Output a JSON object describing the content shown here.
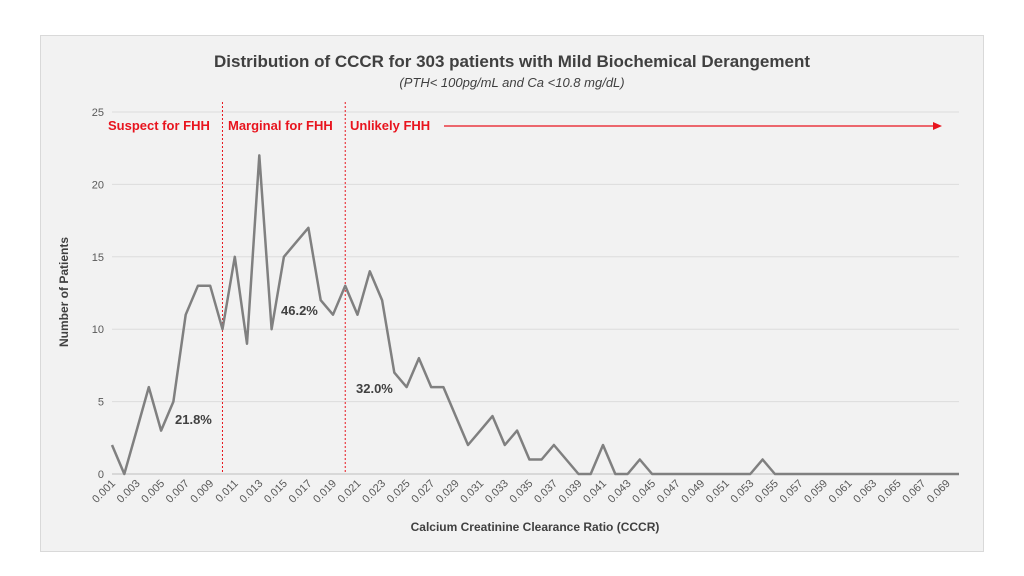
{
  "chart_data": {
    "type": "line",
    "title": "Distribution of CCCR for 303 patients with Mild Biochemical Derangement",
    "subtitle": "(PTH< 100pg/mL and Ca <10.8 mg/dL)",
    "xlabel": "Calcium Creatinine Clearance Ratio (CCCR)",
    "ylabel": "Number of Patients",
    "ylim": [
      0,
      25
    ],
    "yticks": [
      0,
      5,
      10,
      15,
      20,
      25
    ],
    "x": [
      0.001,
      0.002,
      0.003,
      0.004,
      0.005,
      0.006,
      0.007,
      0.008,
      0.009,
      0.01,
      0.011,
      0.012,
      0.013,
      0.014,
      0.015,
      0.016,
      0.017,
      0.018,
      0.019,
      0.02,
      0.021,
      0.022,
      0.023,
      0.024,
      0.025,
      0.026,
      0.027,
      0.028,
      0.029,
      0.03,
      0.031,
      0.032,
      0.033,
      0.034,
      0.035,
      0.036,
      0.037,
      0.038,
      0.039,
      0.04,
      0.041,
      0.042,
      0.043,
      0.044,
      0.045,
      0.046,
      0.047,
      0.048,
      0.049,
      0.05,
      0.051,
      0.052,
      0.053,
      0.054,
      0.055,
      0.056,
      0.057,
      0.058,
      0.059,
      0.06,
      0.061,
      0.062,
      0.063,
      0.064,
      0.065,
      0.066,
      0.067,
      0.068,
      0.069,
      0.07
    ],
    "values": [
      2,
      0,
      3,
      6,
      3,
      5,
      11,
      13,
      13,
      10,
      15,
      9,
      22,
      10,
      15,
      16,
      17,
      12,
      11,
      13,
      11,
      14,
      12,
      7,
      6,
      8,
      6,
      6,
      4,
      2,
      3,
      4,
      2,
      3,
      1,
      1,
      2,
      1,
      0,
      0,
      2,
      0,
      0,
      1,
      0,
      0,
      0,
      0,
      0,
      0,
      0,
      0,
      0,
      1,
      0,
      0,
      0,
      0,
      0,
      0,
      0,
      0,
      0,
      0,
      0,
      0,
      0,
      0,
      0,
      0
    ],
    "xtick_labels": [
      "0.001",
      "0.003",
      "0.005",
      "0.007",
      "0.009",
      "0.011",
      "0.013",
      "0.015",
      "0.017",
      "0.019",
      "0.021",
      "0.023",
      "0.025",
      "0.027",
      "0.029",
      "0.031",
      "0.033",
      "0.035",
      "0.037",
      "0.039",
      "0.041",
      "0.043",
      "0.045",
      "0.047",
      "0.049",
      "0.051",
      "0.053",
      "0.055",
      "0.057",
      "0.059",
      "0.061",
      "0.063",
      "0.065",
      "0.067",
      "0.069"
    ],
    "line_color": "#808080",
    "region_color": "#e8141e",
    "dividers_at": [
      0.01,
      0.02
    ],
    "regions": [
      {
        "label": "Suspect for FHH",
        "percent": "21.8%"
      },
      {
        "label": "Marginal for FHH",
        "percent": "46.2%"
      },
      {
        "label": "Unlikely FHH",
        "percent": "32.0%"
      }
    ],
    "grid": true
  }
}
